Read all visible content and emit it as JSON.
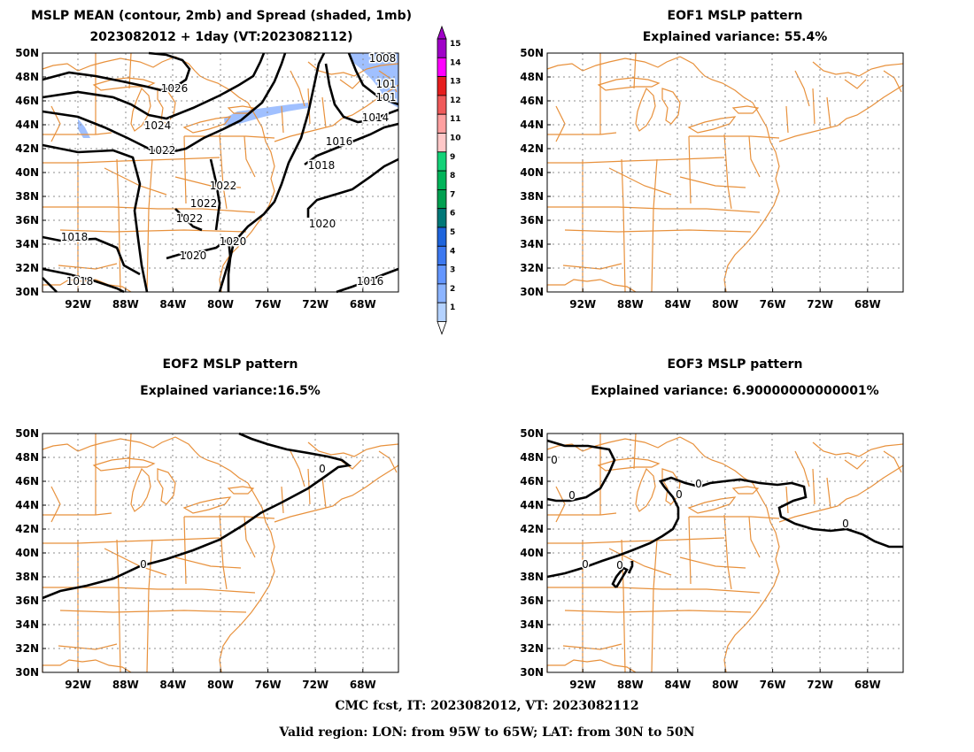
{
  "panels": [
    {
      "id": "mean",
      "title_lines": [
        "MSLP MEAN (contour, 2mb) and Spread (shaded, 1mb)",
        "2023082012 + 1day (VT:2023082112)"
      ],
      "contour_labels": [
        "1026",
        "1024",
        "1022",
        "1022",
        "1022",
        "1022",
        "1020",
        "1020",
        "1020",
        "1018",
        "1018",
        "1018",
        "1016",
        "1016",
        "1014",
        "101",
        "101",
        "1008"
      ]
    },
    {
      "id": "eof1",
      "title_lines": [
        "EOF1 MSLP pattern",
        "Explained variance: 55.4%"
      ],
      "contour_labels": []
    },
    {
      "id": "eof2",
      "title_lines": [
        "EOF2 MSLP pattern",
        "Explained variance:16.5%"
      ],
      "contour_labels": [
        "0",
        "0"
      ]
    },
    {
      "id": "eof3",
      "title_lines": [
        "EOF3 MSLP pattern",
        "Explained variance: 6.90000000000001%"
      ],
      "contour_labels": [
        "0",
        "0",
        "0",
        "0",
        "0",
        "0",
        "0"
      ]
    }
  ],
  "axes": {
    "lat_labels": [
      "50N",
      "48N",
      "46N",
      "44N",
      "42N",
      "40N",
      "38N",
      "36N",
      "34N",
      "32N",
      "30N"
    ],
    "lon_labels": [
      "92W",
      "88W",
      "84W",
      "80W",
      "76W",
      "72W",
      "68W"
    ],
    "lat_range": [
      30,
      50
    ],
    "lon_range": [
      -95,
      -65
    ]
  },
  "colorbar": {
    "labels": [
      "15",
      "14",
      "13",
      "12",
      "11",
      "10",
      "9",
      "8",
      "7",
      "6",
      "5",
      "4",
      "3",
      "2",
      "1"
    ],
    "colors": [
      "#a000c8",
      "#ff00ff",
      "#e61e1e",
      "#f05a5a",
      "#ffa0a0",
      "#ffc8c8",
      "#14d278",
      "#00b45a",
      "#00a050",
      "#007878",
      "#1e64dc",
      "#3c78f0",
      "#6496ff",
      "#8cb4ff",
      "#b4d2ff"
    ]
  },
  "style": {
    "map_line_color": "#e8913c",
    "grid_color": "#8c8c8c",
    "spread_shade": "#a0c0ff",
    "contour_color": "#000000"
  },
  "footer": {
    "line1": "CMC fcst, IT: 2023082012, VT: 2023082112",
    "line2": "Valid region: LON: from 95W to 65W; LAT: from 30N to 50N"
  }
}
